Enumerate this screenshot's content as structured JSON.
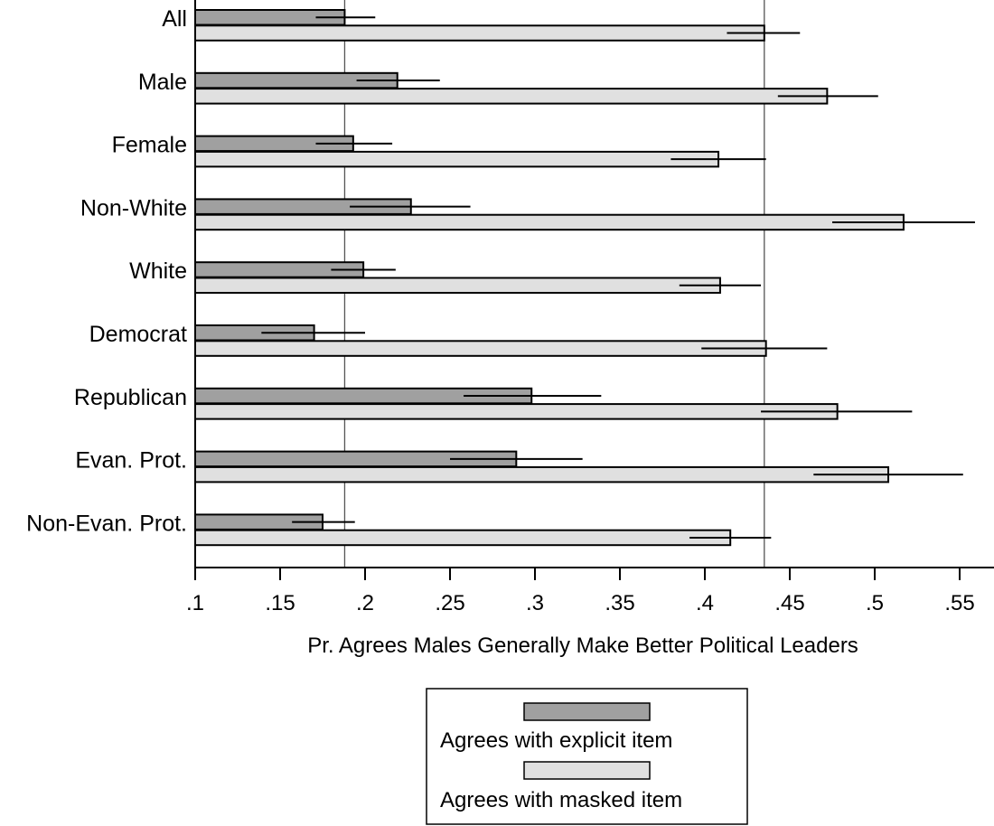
{
  "chart_data": {
    "type": "bar",
    "orientation": "horizontal",
    "title": "",
    "xlabel": "Pr. Agrees Males Generally Make Better Political Leaders",
    "ylabel": "",
    "xlim": [
      0.1,
      0.57
    ],
    "xticks": [
      0.1,
      0.15,
      0.2,
      0.25,
      0.3,
      0.35,
      0.4,
      0.45,
      0.5,
      0.55
    ],
    "xtick_labels": [
      ".1",
      ".15",
      ".2",
      ".25",
      ".3",
      ".35",
      ".4",
      ".45",
      ".5",
      ".55"
    ],
    "grid": false,
    "reference_lines": [
      0.188,
      0.435
    ],
    "categories": [
      "All",
      "Male",
      "Female",
      "Non-White",
      "White",
      "Democrat",
      "Republican",
      "Evan. Prot.",
      "Non-Evan. Prot."
    ],
    "series": [
      {
        "name": "Agrees with explicit item",
        "color": "#a0a0a0",
        "values": [
          0.188,
          0.219,
          0.193,
          0.227,
          0.199,
          0.17,
          0.298,
          0.289,
          0.175
        ],
        "ci_low": [
          0.171,
          0.195,
          0.171,
          0.191,
          0.18,
          0.139,
          0.258,
          0.25,
          0.157
        ],
        "ci_high": [
          0.206,
          0.244,
          0.216,
          0.262,
          0.218,
          0.2,
          0.339,
          0.328,
          0.194
        ]
      },
      {
        "name": "Agrees with masked item",
        "color": "#e0e0e0",
        "values": [
          0.435,
          0.472,
          0.408,
          0.517,
          0.409,
          0.436,
          0.478,
          0.508,
          0.415
        ],
        "ci_low": [
          0.413,
          0.443,
          0.38,
          0.475,
          0.385,
          0.398,
          0.433,
          0.464,
          0.391
        ],
        "ci_high": [
          0.456,
          0.502,
          0.436,
          0.559,
          0.433,
          0.472,
          0.522,
          0.552,
          0.439
        ]
      }
    ],
    "legend": {
      "position": "bottom-center",
      "entries": [
        "Agrees with explicit item",
        "Agrees with masked item"
      ]
    }
  }
}
